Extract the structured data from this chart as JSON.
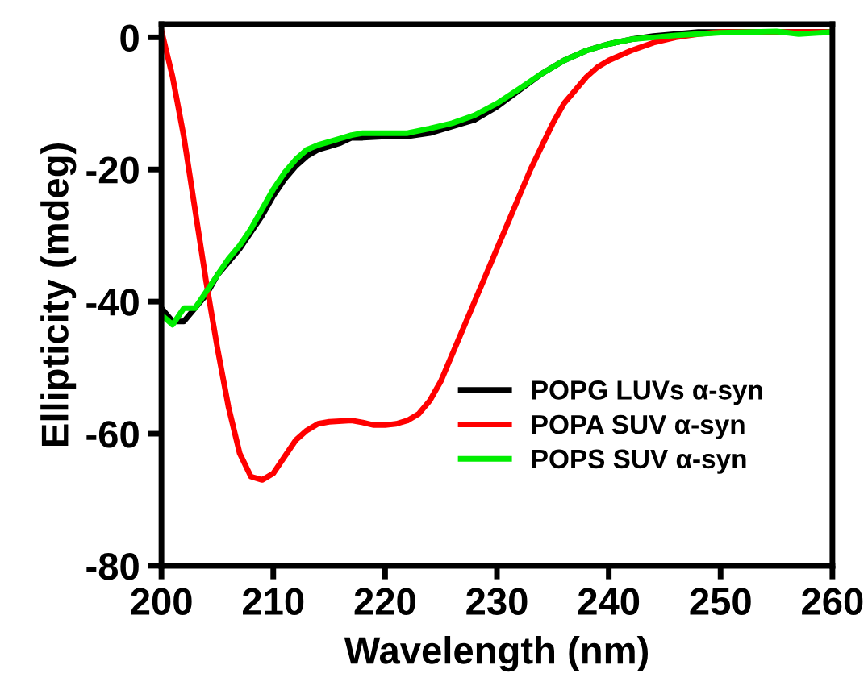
{
  "chart_data": {
    "type": "line",
    "xlabel": "Wavelength (nm)",
    "ylabel": "Ellipticity (mdeg)",
    "xlim": [
      200,
      260
    ],
    "ylim": [
      -80,
      2
    ],
    "xticks": [
      200,
      210,
      220,
      230,
      240,
      250,
      260
    ],
    "yticks": [
      -80,
      -60,
      -40,
      -20,
      0
    ],
    "grid": false,
    "legend": "bottom right",
    "series": [
      {
        "name": "POPG LUVs α-syn",
        "color": "#000000",
        "x": [
          200,
          201,
          202,
          203,
          204,
          205,
          206,
          207,
          208,
          209,
          210,
          211,
          212,
          213,
          214,
          215,
          216,
          217,
          218,
          220,
          222,
          224,
          226,
          228,
          230,
          232,
          234,
          236,
          238,
          240,
          242,
          244,
          246,
          248,
          250,
          255,
          260
        ],
        "values": [
          -41,
          -43,
          -43,
          -41,
          -39,
          -36,
          -34,
          -32,
          -29.5,
          -27,
          -24,
          -21.5,
          -19.5,
          -18,
          -17,
          -16.5,
          -16,
          -15.2,
          -15.2,
          -15,
          -15,
          -14.5,
          -13.5,
          -12.5,
          -10.5,
          -8,
          -5.5,
          -3.5,
          -2,
          -1,
          -0.3,
          0.2,
          0.5,
          0.8,
          0.8,
          0.8,
          0.8
        ]
      },
      {
        "name": "POPA SUV α-syn",
        "color": "#ff0000",
        "x": [
          200,
          201,
          202,
          203,
          204,
          205,
          206,
          207,
          208,
          209,
          210,
          211,
          212,
          213,
          214,
          215,
          217,
          218,
          219,
          220,
          221,
          222,
          223,
          224,
          225,
          226,
          227,
          228,
          229,
          230,
          231,
          232,
          233,
          234,
          235,
          236,
          237,
          238,
          239,
          240,
          242,
          244,
          246,
          248,
          250,
          260
        ],
        "values": [
          1,
          -6,
          -15,
          -26,
          -37,
          -47,
          -56,
          -63,
          -66.5,
          -67,
          -66,
          -63.5,
          -61,
          -59.5,
          -58.5,
          -58.2,
          -58,
          -58.3,
          -58.7,
          -58.7,
          -58.5,
          -58,
          -57,
          -55,
          -52,
          -48,
          -44,
          -40,
          -36,
          -32,
          -28,
          -24,
          -20,
          -16.5,
          -13,
          -10,
          -8,
          -6,
          -4.5,
          -3.5,
          -2,
          -0.8,
          0,
          0.5,
          0.8,
          0.8
        ]
      },
      {
        "name": "POPS SUV α-syn",
        "color": "#00ee00",
        "x": [
          200,
          201,
          202,
          203,
          204,
          205,
          206,
          207,
          208,
          209,
          210,
          211,
          212,
          213,
          214,
          215,
          216,
          217,
          218,
          220,
          222,
          224,
          226,
          228,
          230,
          232,
          234,
          236,
          238,
          240,
          242,
          244,
          246,
          248,
          250,
          255,
          257,
          260
        ],
        "values": [
          -42,
          -43.5,
          -41,
          -41,
          -38.5,
          -36,
          -33.5,
          -31.5,
          -29,
          -26,
          -23,
          -20.5,
          -18.5,
          -17,
          -16.3,
          -15.8,
          -15.3,
          -14.8,
          -14.5,
          -14.5,
          -14.5,
          -13.8,
          -13,
          -11.8,
          -10,
          -7.8,
          -5.5,
          -3.5,
          -2,
          -1,
          -0.3,
          0,
          0.3,
          0.5,
          0.7,
          0.9,
          0.5,
          0.8
        ]
      }
    ]
  }
}
